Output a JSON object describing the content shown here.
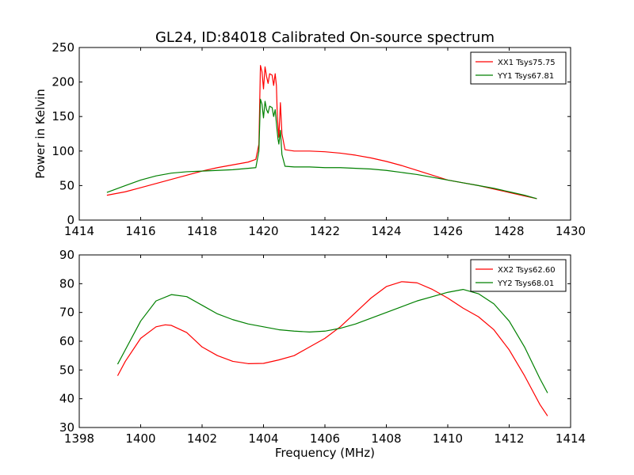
{
  "chart_data": [
    {
      "type": "line",
      "title": "GL24, ID:84018 Calibrated On-source spectrum",
      "xlabel": "",
      "ylabel": "Power in Kelvin",
      "xlim": [
        1414,
        1430
      ],
      "ylim": [
        0,
        250
      ],
      "xticks": [
        1414,
        1416,
        1418,
        1420,
        1422,
        1424,
        1426,
        1428,
        1430
      ],
      "yticks": [
        0,
        50,
        100,
        150,
        200,
        250
      ],
      "grid": false,
      "legend_position": "top-right",
      "series": [
        {
          "name": "XX1 Tsys75.75",
          "color": "#ff0000",
          "points": [
            [
              1414.9,
              36
            ],
            [
              1415.5,
              41
            ],
            [
              1416,
              47
            ],
            [
              1416.5,
              53
            ],
            [
              1417,
              59
            ],
            [
              1417.5,
              65
            ],
            [
              1418,
              71
            ],
            [
              1418.5,
              76
            ],
            [
              1419,
              80
            ],
            [
              1419.5,
              84
            ],
            [
              1419.75,
              88
            ],
            [
              1419.85,
              110
            ],
            [
              1419.9,
              224
            ],
            [
              1419.95,
              215
            ],
            [
              1420.0,
              190
            ],
            [
              1420.05,
              222
            ],
            [
              1420.1,
              208
            ],
            [
              1420.15,
              198
            ],
            [
              1420.2,
              212
            ],
            [
              1420.28,
              210
            ],
            [
              1420.33,
              195
            ],
            [
              1420.38,
              212
            ],
            [
              1420.42,
              195
            ],
            [
              1420.45,
              150
            ],
            [
              1420.5,
              120
            ],
            [
              1420.55,
              170
            ],
            [
              1420.6,
              125
            ],
            [
              1420.7,
              102
            ],
            [
              1421,
              100
            ],
            [
              1421.5,
              100
            ],
            [
              1422,
              99
            ],
            [
              1422.5,
              97
            ],
            [
              1423,
              94
            ],
            [
              1423.5,
              90
            ],
            [
              1424,
              85
            ],
            [
              1424.5,
              79
            ],
            [
              1425,
              72
            ],
            [
              1425.5,
              65
            ],
            [
              1426,
              58
            ],
            [
              1426.5,
              54
            ],
            [
              1427,
              50
            ],
            [
              1427.5,
              45
            ],
            [
              1428,
              40
            ],
            [
              1428.5,
              35
            ],
            [
              1428.9,
              31
            ]
          ]
        },
        {
          "name": "YY1 Tsys67.81",
          "color": "#008000",
          "points": [
            [
              1414.9,
              40
            ],
            [
              1415.5,
              50
            ],
            [
              1416,
              58
            ],
            [
              1416.5,
              64
            ],
            [
              1417,
              68
            ],
            [
              1417.5,
              70
            ],
            [
              1418,
              71
            ],
            [
              1418.5,
              72
            ],
            [
              1419,
              73
            ],
            [
              1419.5,
              75
            ],
            [
              1419.75,
              76
            ],
            [
              1419.85,
              100
            ],
            [
              1419.9,
              175
            ],
            [
              1419.95,
              168
            ],
            [
              1420.0,
              148
            ],
            [
              1420.05,
              172
            ],
            [
              1420.1,
              160
            ],
            [
              1420.15,
              155
            ],
            [
              1420.2,
              165
            ],
            [
              1420.28,
              163
            ],
            [
              1420.33,
              150
            ],
            [
              1420.38,
              160
            ],
            [
              1420.42,
              140
            ],
            [
              1420.47,
              118
            ],
            [
              1420.5,
              110
            ],
            [
              1420.55,
              130
            ],
            [
              1420.6,
              95
            ],
            [
              1420.7,
              78
            ],
            [
              1421,
              77
            ],
            [
              1421.5,
              77
            ],
            [
              1422,
              76
            ],
            [
              1422.5,
              76
            ],
            [
              1423,
              75
            ],
            [
              1423.5,
              74
            ],
            [
              1424,
              72
            ],
            [
              1424.5,
              69
            ],
            [
              1425,
              66
            ],
            [
              1425.5,
              62
            ],
            [
              1426,
              58
            ],
            [
              1426.5,
              54
            ],
            [
              1427,
              50
            ],
            [
              1427.5,
              46
            ],
            [
              1428,
              41
            ],
            [
              1428.5,
              36
            ],
            [
              1428.9,
              31
            ]
          ]
        }
      ]
    },
    {
      "type": "line",
      "title": "",
      "xlabel": "Frequency (MHz)",
      "ylabel": "",
      "xlim": [
        1398,
        1414
      ],
      "ylim": [
        30,
        90
      ],
      "xticks": [
        1398,
        1400,
        1402,
        1404,
        1406,
        1408,
        1410,
        1412,
        1414
      ],
      "yticks": [
        30,
        40,
        50,
        60,
        70,
        80,
        90
      ],
      "grid": false,
      "legend_position": "top-right",
      "series": [
        {
          "name": "XX2 Tsys62.60",
          "color": "#ff0000",
          "points": [
            [
              1399.25,
              48
            ],
            [
              1399.5,
              53
            ],
            [
              1400,
              61
            ],
            [
              1400.5,
              65
            ],
            [
              1400.8,
              65.7
            ],
            [
              1401,
              65.5
            ],
            [
              1401.5,
              63
            ],
            [
              1402,
              58
            ],
            [
              1402.5,
              55
            ],
            [
              1403,
              53
            ],
            [
              1403.5,
              52.2
            ],
            [
              1404,
              52.3
            ],
            [
              1404.5,
              53.5
            ],
            [
              1405,
              55
            ],
            [
              1405.5,
              58
            ],
            [
              1406,
              61
            ],
            [
              1406.5,
              65
            ],
            [
              1407,
              70
            ],
            [
              1407.5,
              75
            ],
            [
              1408,
              79
            ],
            [
              1408.5,
              80.7
            ],
            [
              1409,
              80.3
            ],
            [
              1409.5,
              78
            ],
            [
              1410,
              75
            ],
            [
              1410.5,
              71.5
            ],
            [
              1411,
              68.5
            ],
            [
              1411.5,
              64
            ],
            [
              1412,
              57
            ],
            [
              1412.5,
              48
            ],
            [
              1413,
              38
            ],
            [
              1413.25,
              34
            ]
          ]
        },
        {
          "name": "YY2 Tsys68.01",
          "color": "#008000",
          "points": [
            [
              1399.25,
              52
            ],
            [
              1399.5,
              57
            ],
            [
              1400,
              67
            ],
            [
              1400.5,
              74
            ],
            [
              1401,
              76.2
            ],
            [
              1401.5,
              75.5
            ],
            [
              1402,
              72.5
            ],
            [
              1402.5,
              69.5
            ],
            [
              1403,
              67.5
            ],
            [
              1403.5,
              66
            ],
            [
              1404,
              65
            ],
            [
              1404.5,
              64
            ],
            [
              1405,
              63.5
            ],
            [
              1405.5,
              63.2
            ],
            [
              1406,
              63.5
            ],
            [
              1406.5,
              64.5
            ],
            [
              1407,
              66
            ],
            [
              1407.5,
              68
            ],
            [
              1408,
              70
            ],
            [
              1408.5,
              72
            ],
            [
              1409,
              74
            ],
            [
              1409.5,
              75.5
            ],
            [
              1410,
              77
            ],
            [
              1410.5,
              78
            ],
            [
              1411,
              76.5
            ],
            [
              1411.5,
              73
            ],
            [
              1412,
              67
            ],
            [
              1412.5,
              58
            ],
            [
              1413,
              47
            ],
            [
              1413.25,
              42
            ]
          ]
        }
      ]
    }
  ]
}
